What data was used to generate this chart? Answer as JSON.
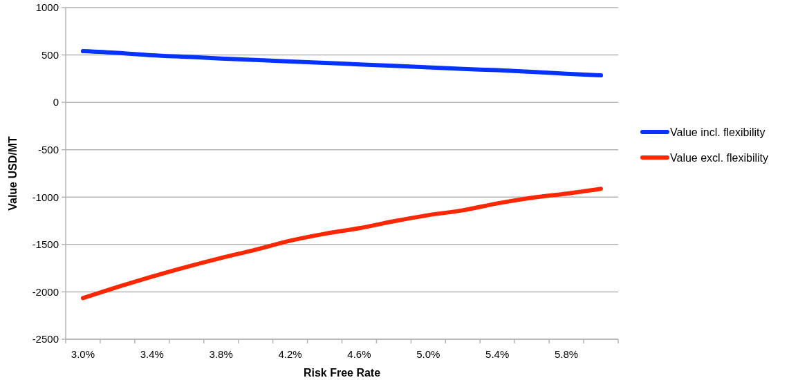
{
  "chart_data": {
    "type": "line",
    "xlabel": "Risk Free Rate",
    "ylabel": "Value USD/MT",
    "categories": [
      "3.0%",
      null,
      "3.4%",
      null,
      "3.8%",
      null,
      "4.2%",
      null,
      "4.6%",
      null,
      "5.0%",
      null,
      "5.4%",
      null,
      "5.8%",
      null
    ],
    "series": [
      {
        "name": "Value incl. flexibility",
        "color": "#0433ff",
        "values": [
          540,
          522,
          497,
          480,
          463,
          447,
          432,
          417,
          400,
          385,
          370,
          352,
          340,
          322,
          302,
          285
        ]
      },
      {
        "name": "Value excl. flexibility",
        "color": "#ff2600",
        "values": [
          -2065,
          -1949,
          -1839,
          -1737,
          -1642,
          -1555,
          -1460,
          -1387,
          -1328,
          -1255,
          -1190,
          -1139,
          -1066,
          -1007,
          -963,
          -912
        ]
      }
    ],
    "ylim": [
      -2500,
      1000
    ],
    "yticks": [
      -2500,
      -2000,
      -1500,
      -1000,
      -500,
      0,
      500,
      1000
    ],
    "grid": "y",
    "legend": "right",
    "marker": "none",
    "line_style": "solid"
  }
}
